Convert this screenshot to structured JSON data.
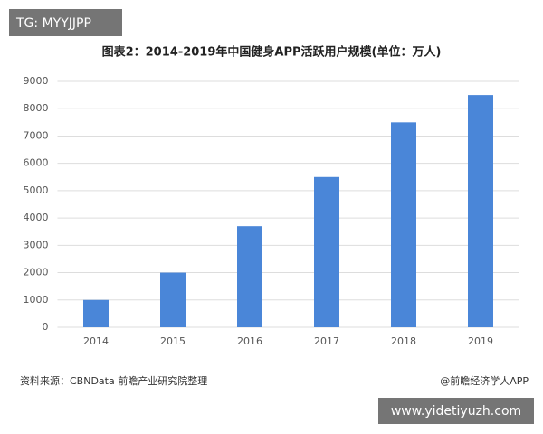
{
  "chart_data": {
    "type": "bar",
    "title": "图表2：2014-2019年中国健身APP活跃用户规模(单位：万人)",
    "categories": [
      "2014",
      "2015",
      "2016",
      "2017",
      "2018",
      "2019"
    ],
    "values": [
      1000,
      2000,
      3700,
      5500,
      7500,
      8500
    ],
    "color": "#4a86d8",
    "ylim": [
      0,
      9000
    ],
    "yticks": [
      0,
      1000,
      2000,
      3000,
      4000,
      5000,
      6000,
      7000,
      8000,
      9000
    ],
    "grid": true,
    "source": "资料来源：CBNData 前瞻产业研究院整理",
    "credit": "@前瞻经济学人APP"
  },
  "overlays": {
    "top_left": "TG: MYYJJPP",
    "bottom_right": "www.yidetiyuzh.com"
  }
}
